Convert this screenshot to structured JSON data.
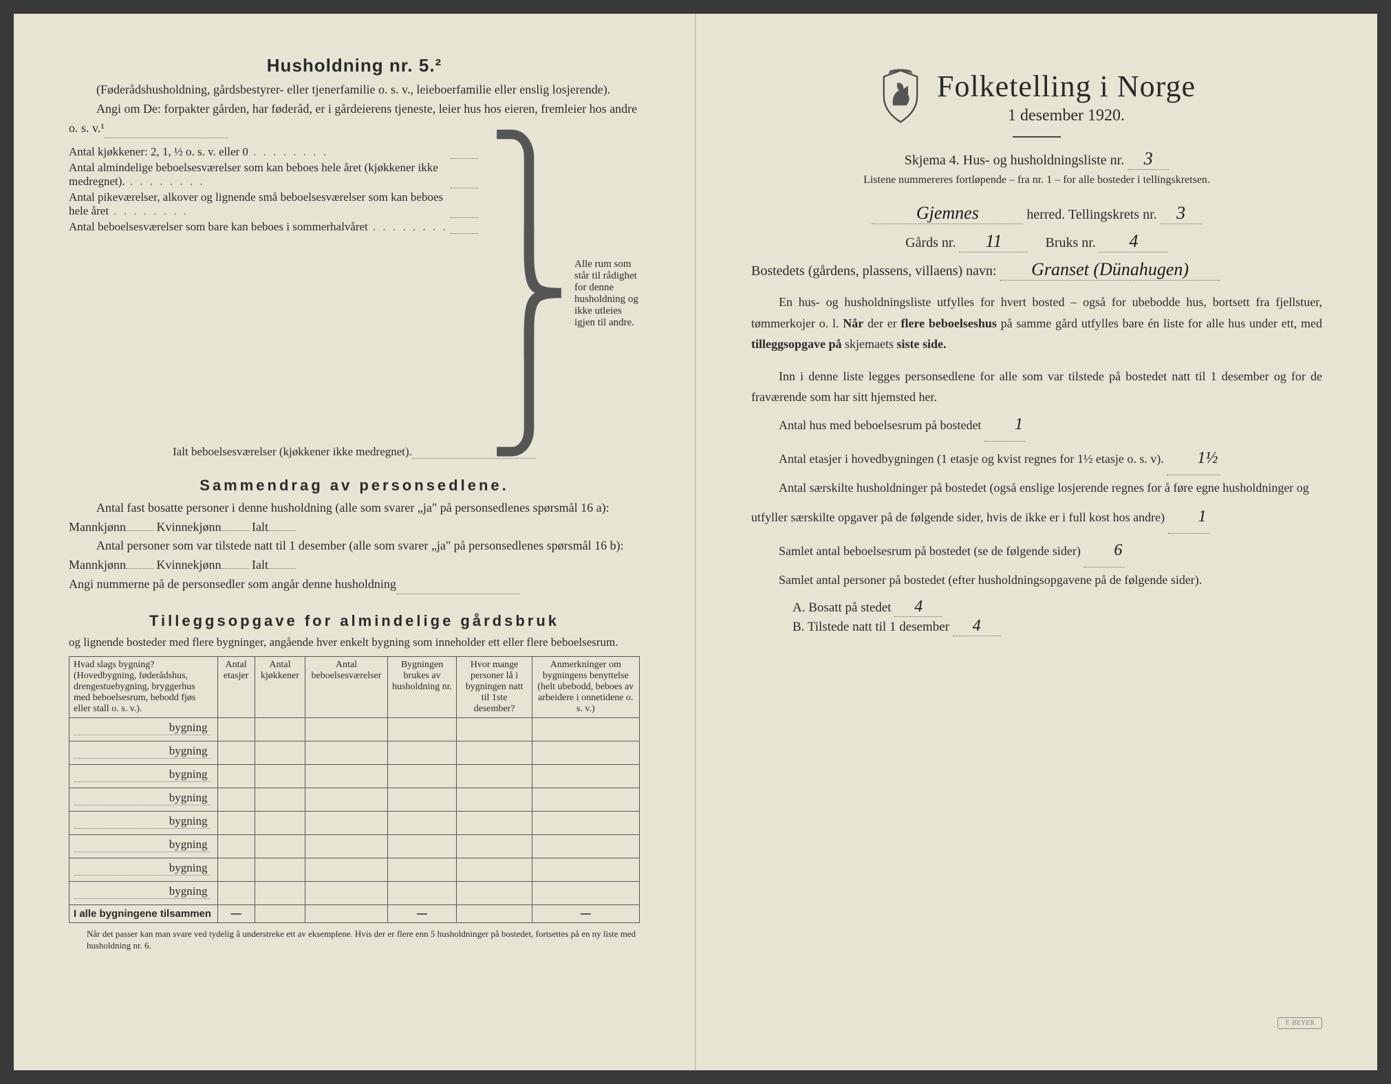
{
  "left": {
    "title": "Husholdning nr. 5.²",
    "intro1": "(Føderådshusholdning, gårdsbestyrer- eller tjenerfamilie o. s. v., leieboerfamilie eller enslig losjerende).",
    "intro2": "Angi om De:  forpakter gården, har føderåd, er i gårdeierens tjeneste, leier hus hos eieren, fremleier hos andre o. s. v.¹",
    "kitchen_lines": [
      "Antal kjøkkener: 2, 1, ½ o. s. v. eller 0",
      "Antal almindelige beboelsesværelser som kan beboes hele året (kjøkkener ikke medregnet).",
      "Antal pikeværelser, alkover og lignende små beboelsesværelser som kan beboes hele året",
      "Antal beboelsesværelser som bare kan beboes i sommerhalvåret"
    ],
    "brace_text": "Alle rum som står til rådighet for denne husholdning og ikke utleies igjen til andre.",
    "ialt": "Ialt beboelsesværelser  (kjøkkener ikke medregnet).",
    "sammendrag_title": "Sammendrag av personsedlene.",
    "samm_l1a": "Antal fast bosatte personer i denne husholdning (alle som svarer „ja\" på personsedlenes spørsmål 16 a): Mannkjønn",
    "samm_kv": "Kvinnekjønn",
    "samm_ialt": "Ialt",
    "samm_l2a": "Antal personer som var tilstede natt til 1 desember (alle som svarer „ja\" på personsedlenes spørsmål 16 b): Mannkjønn",
    "samm_l3": "Angi nummerne på de personsedler som angår denne husholdning",
    "tillegg_title": "Tilleggsopgave for almindelige gårdsbruk",
    "tillegg_intro": "og lignende bosteder med flere bygninger, angående hver enkelt bygning som inneholder ett eller flere beboelsesrum.",
    "table": {
      "headers": [
        "Hvad slags bygning?\n(Hovedbygning, føderådshus, drengestuebygning, bryggerhus med beboelsesrum, bebodd fjøs eller stall o. s. v.).",
        "Antal etasjer",
        "Antal kjøkkener",
        "Antal beboelsesværelser",
        "Bygningen brukes av husholdning nr.",
        "Hvor mange personer lå i bygningen natt til 1ste desember?",
        "Anmerkninger om bygningens benyttelse (helt ubebodd, beboes av arbeidere i onnetidene o. s. v.)"
      ],
      "row_label": "bygning",
      "row_count": 8,
      "sum_label": "I alle bygningene tilsammen",
      "dash": "—"
    },
    "footnote": "Når det passer kan man svare ved tydelig å understreke ett av eksemplene.\nHvis der er flere enn 5 husholdninger på bostedet, fortsettes på en ny liste med husholdning nr. 6."
  },
  "right": {
    "title": "Folketelling i Norge",
    "date": "1 desember 1920.",
    "skjema_pre": "Skjema 4.   Hus- og husholdningsliste nr.",
    "skjema_val": "3",
    "listene": "Listene nummereres fortløpende – fra nr. 1 – for alle bosteder i tellingskretsen.",
    "herred_val": "Gjemnes",
    "herred_lbl": "herred.   Tellingskrets nr.",
    "tellkrets_val": "3",
    "gards_lbl": "Gårds nr.",
    "gards_val": "11",
    "bruks_lbl": "Bruks nr.",
    "bruks_val": "4",
    "bosted_lbl": "Bostedets (gårdens, plassens, villaens) navn:",
    "bosted_val": "Granset (Dünahugen)",
    "para1": "En hus- og husholdningsliste utfylles for hvert bosted – også for ubebodde hus, bortsett fra fjellstuer, tømmerkojer o. l.  Når der er flere beboelseshus på samme gård utfylles bare én liste for alle hus under ett, med tilleggsopgave på skjemaets siste side.",
    "para2": "Inn i denne liste legges personsedlene for alle som var tilstede på bostedet natt til 1 desember og for de fraværende som har sitt hjemsted her.",
    "a1_lbl": "Antal hus med beboelsesrum på bostedet",
    "a1_val": "1",
    "a2_lbl_a": "Antal etasjer i hovedbygningen (1 etasje og kvist regnes for 1½ etasje o. s. v).",
    "a2_val": "1½",
    "a3_lbl": "Antal særskilte husholdninger på bostedet (også enslige losjerende regnes for å føre egne husholdninger og utfyller særskilte opgaver på de følgende sider, hvis de ikke er i full kost hos andre)",
    "a3_val": "1",
    "a4_lbl": "Samlet antal beboelsesrum på bostedet (se de følgende sider)",
    "a4_val": "6",
    "a5_lbl": "Samlet antal personer på bostedet (efter husholdningsopgavene på de følgende sider).",
    "ab_a_lbl": "A.  Bosatt på stedet",
    "ab_a_val": "4",
    "ab_b_lbl": "B.  Tilstede natt til 1 desember",
    "ab_b_val": "4",
    "stamp": "F. BEYER"
  },
  "colors": {
    "paper": "#e8e4d4",
    "ink": "#2a2a2a",
    "hand": "#1a1a1a"
  }
}
